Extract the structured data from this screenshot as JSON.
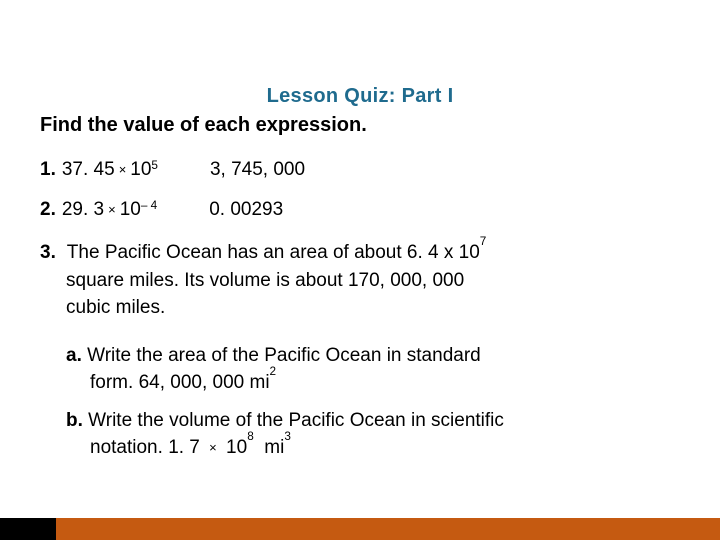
{
  "title_color": "#1F6B8E",
  "body_color": "#000000",
  "bar_color": "#C55A11",
  "bar_left_patch": "#000000",
  "title": "Lesson Quiz: Part I",
  "instruction": "Find the value of each expression.",
  "q1": {
    "num": "1.",
    "coef": "37. 45",
    "times": "×",
    "base": "10",
    "exp": "5",
    "answer": "3, 745, 000"
  },
  "q2": {
    "num": "2.",
    "coef": "29. 3",
    "times": "×",
    "base": "10",
    "exp": "– 4",
    "answer": "0. 00293"
  },
  "q3": {
    "num": "3.",
    "line1": "The Pacific Ocean has an area of about 6. 4 x 10",
    "line1_exp": "7",
    "line2": "square miles. Its volume is about 170, 000, 000",
    "line3": "cubic miles.",
    "a": {
      "label": "a.",
      "text1": "Write the area of the Pacific Ocean in standard",
      "text2": "form.",
      "answer": "64, 000, 000 mi",
      "answer_exp": "2"
    },
    "b": {
      "label": "b.",
      "text1": "Write the volume of the Pacific Ocean in scientific",
      "text2": "notation.",
      "answer_coef": "1. 7",
      "answer_times": "×",
      "answer_base": "10",
      "answer_exp": "8",
      "answer_unit": "mi",
      "answer_unit_exp": "3"
    }
  }
}
